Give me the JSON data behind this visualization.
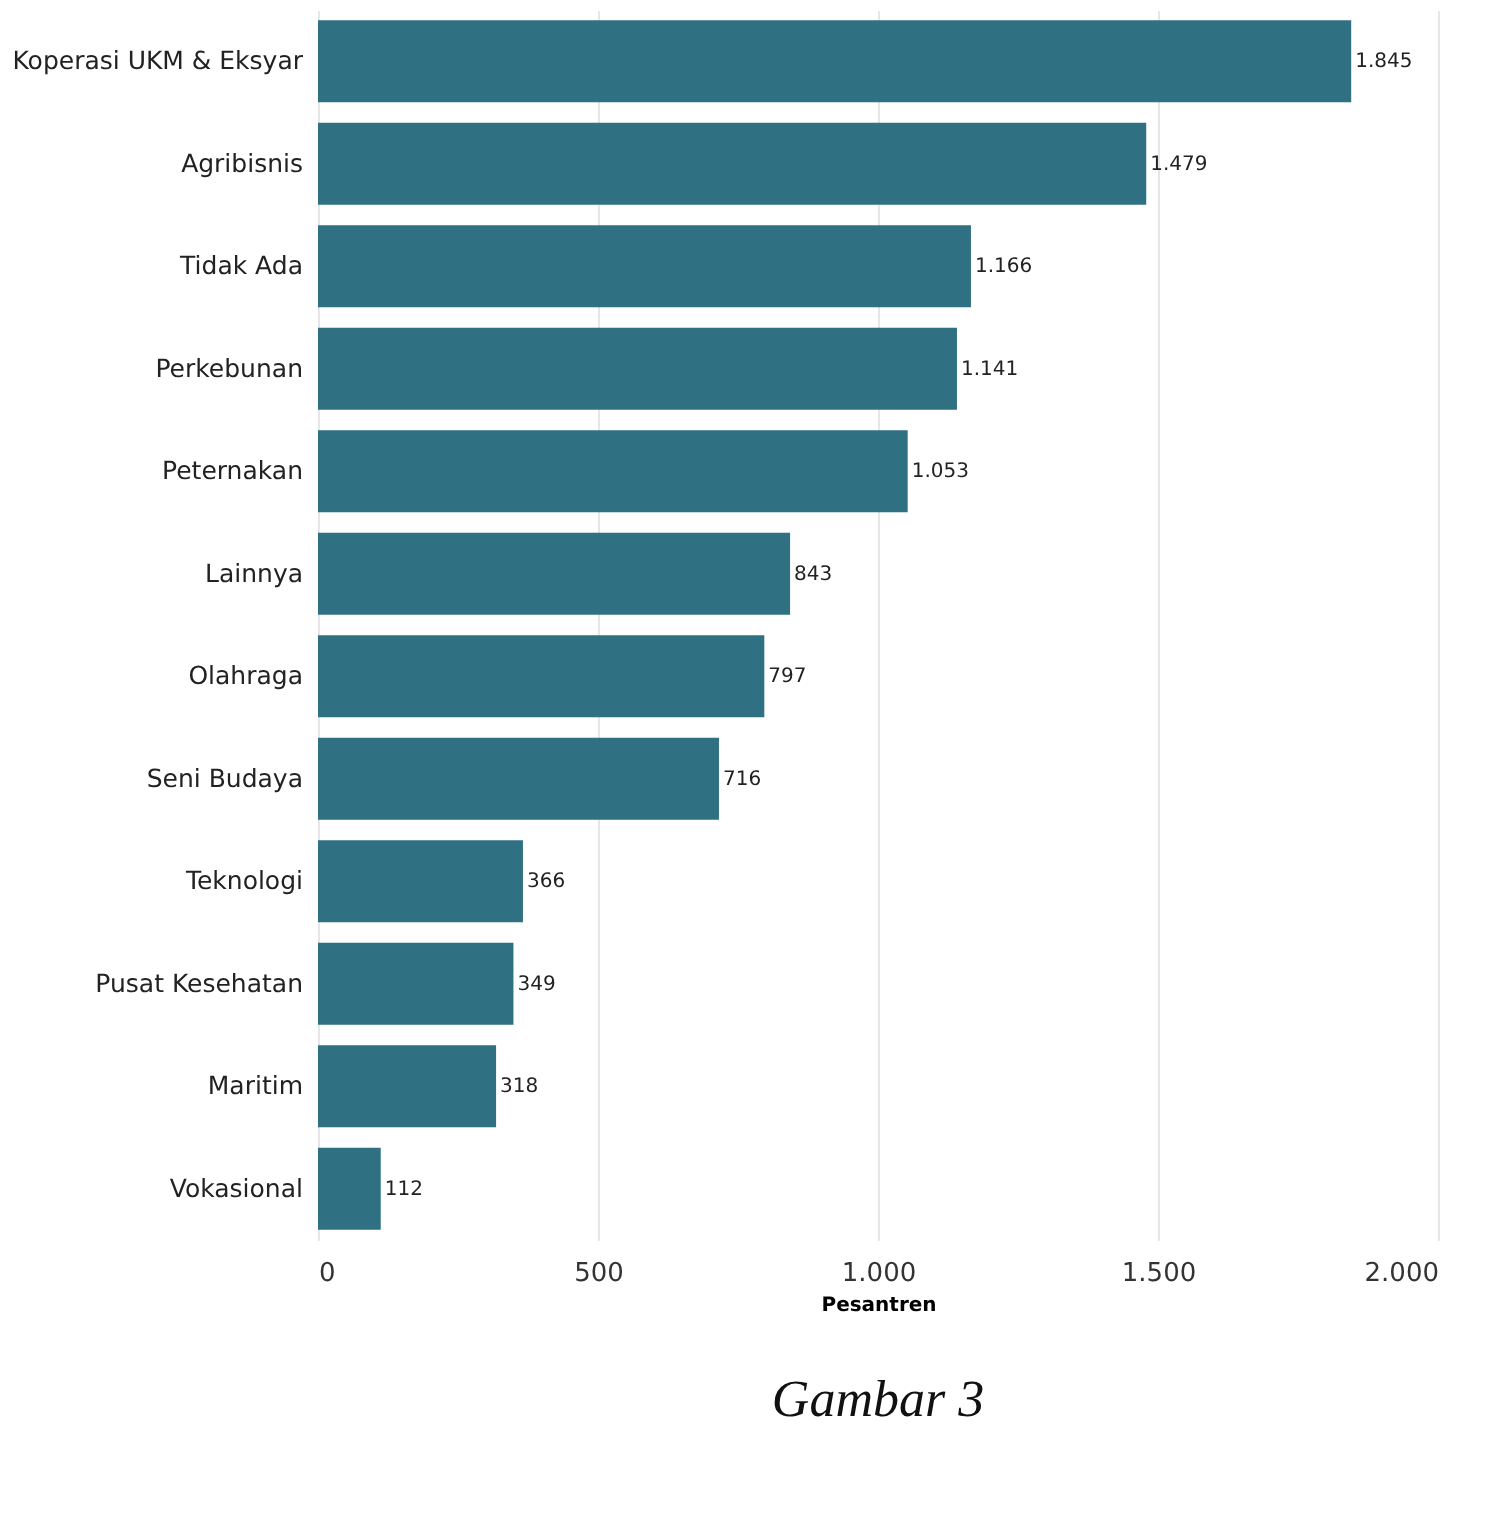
{
  "chart_data": {
    "type": "bar",
    "orientation": "horizontal",
    "xlabel": "Pesantren",
    "categories": [
      "Koperasi UKM & Eksyar",
      "Agribisnis",
      "Tidak Ada",
      "Perkebunan",
      "Peternakan",
      "Lainnya",
      "Olahraga",
      "Seni Budaya",
      "Teknologi",
      "Pusat Kesehatan",
      "Maritim",
      "Vokasional"
    ],
    "values": [
      1845,
      1479,
      1166,
      1141,
      1053,
      843,
      797,
      716,
      366,
      349,
      318,
      112
    ],
    "value_labels": [
      "1.845",
      "1.479",
      "1.166",
      "1.141",
      "1.053",
      "843",
      "797",
      "716",
      "366",
      "349",
      "318",
      "112"
    ],
    "color": "#2f7182",
    "xlim": [
      0,
      2000
    ],
    "xticks": [
      0,
      500,
      {
        "value": 1000,
        "label": "1.000"
      },
      {
        "value": 1500,
        "label": "1.500"
      },
      {
        "value": 2000,
        "label": "2.000"
      }
    ],
    "grid": "x",
    "annotations": [
      "Gambar 3"
    ]
  }
}
